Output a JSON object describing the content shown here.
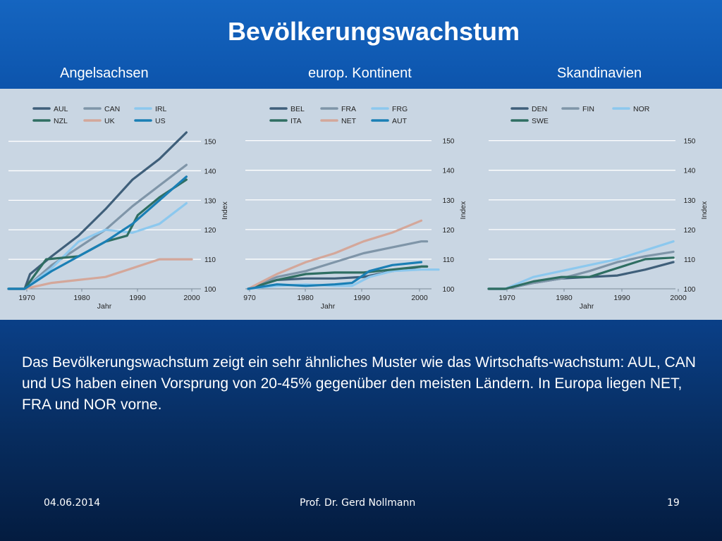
{
  "slide": {
    "title": "Bevölkerungswachstum",
    "subtitles": [
      "Angelsachsen",
      "europ. Kontinent",
      "Skandinavien"
    ],
    "body": "Das Bevölkerungswachstum zeigt ein sehr ähnliches Muster wie das Wirtschafts-wachstum: AUL, CAN und US haben einen Vorsprung von 20-45% gegenüber den meisten Ländern. In Europa liegen NET, FRA und NOR vorne.",
    "footer_date": "04.06.2014",
    "footer_author": "Prof. Dr. Gerd Nollmann",
    "footer_page": "19"
  },
  "colors": {
    "dark": "#3f5f7a",
    "mid": "#7f95a8",
    "light": "#8cc8ee",
    "green": "#2f6e62",
    "pink": "#d4a79a",
    "blue": "#1a7fb5"
  },
  "chart_data": [
    {
      "type": "line",
      "xlabel": "Jahr",
      "ylabel": "Index",
      "xlim": [
        1967,
        2001
      ],
      "ylim": [
        100,
        153
      ],
      "xticks": [
        "1970",
        "1980",
        "1990",
        "2000"
      ],
      "yticks": [
        100,
        110,
        120,
        130,
        140,
        150
      ],
      "grid": true,
      "legend": "top",
      "series": [
        {
          "name": "AUL",
          "color": "dark",
          "x": [
            1967,
            1970,
            1971,
            1975,
            1980,
            1985,
            1990,
            1995,
            2000
          ],
          "y": [
            100,
            100,
            105,
            111,
            118,
            127,
            137,
            144,
            153
          ]
        },
        {
          "name": "CAN",
          "color": "mid",
          "x": [
            1967,
            1970,
            1975,
            1980,
            1985,
            1990,
            1995,
            2000
          ],
          "y": [
            100,
            100,
            108,
            114,
            120,
            128,
            135,
            142
          ]
        },
        {
          "name": "IRL",
          "color": "light",
          "x": [
            1967,
            1970,
            1975,
            1980,
            1985,
            1990,
            1995,
            2000
          ],
          "y": [
            100,
            100,
            107,
            116,
            120,
            119,
            122,
            129
          ]
        },
        {
          "name": "NZL",
          "color": "green",
          "x": [
            1967,
            1970,
            1974,
            1980,
            1985,
            1989,
            1991,
            1995,
            2000
          ],
          "y": [
            100,
            100,
            110,
            111,
            116,
            118,
            125,
            131,
            137
          ]
        },
        {
          "name": "UK",
          "color": "pink",
          "x": [
            1967,
            1970,
            1975,
            1980,
            1985,
            1990,
            1995,
            2001
          ],
          "y": [
            100,
            100,
            102,
            103,
            104,
            107,
            110,
            110
          ]
        },
        {
          "name": "US",
          "color": "blue",
          "x": [
            1967,
            1970,
            1975,
            1980,
            1985,
            1990,
            1995,
            2000
          ],
          "y": [
            100,
            100,
            106,
            111,
            116,
            122,
            130,
            138
          ]
        }
      ]
    },
    {
      "type": "line",
      "xlabel": "Jahr",
      "ylabel": "Index",
      "xlim": [
        1970,
        2003
      ],
      "ylim": [
        100,
        153
      ],
      "xticks": [
        "970",
        "1980",
        "1990",
        "2000"
      ],
      "yticks": [
        100,
        110,
        120,
        130,
        140,
        150
      ],
      "grid": true,
      "legend": "top",
      "series": [
        {
          "name": "BEL",
          "color": "dark",
          "x": [
            1970,
            1975,
            1980,
            1985,
            1990,
            1995,
            2000,
            2001
          ],
          "y": [
            100,
            103,
            103.5,
            103.5,
            104,
            106,
            107.5,
            107.5
          ]
        },
        {
          "name": "FRA",
          "color": "mid",
          "x": [
            1970,
            1975,
            1980,
            1985,
            1990,
            1995,
            2000,
            2001
          ],
          "y": [
            100,
            104,
            106,
            109,
            112,
            114,
            116,
            116
          ]
        },
        {
          "name": "FRG",
          "color": "light",
          "x": [
            1970,
            1975,
            1980,
            1985,
            1988,
            1991,
            1995,
            2000,
            2003
          ],
          "y": [
            100,
            101,
            101.5,
            101,
            101,
            104,
            106,
            106.5,
            106.5
          ]
        },
        {
          "name": "ITA",
          "color": "green",
          "x": [
            1970,
            1975,
            1980,
            1985,
            1990,
            1995,
            2000,
            2001
          ],
          "y": [
            100,
            103,
            105,
            105.5,
            105.5,
            106.5,
            107.5,
            107.5
          ]
        },
        {
          "name": "NET",
          "color": "pink",
          "x": [
            1970,
            1975,
            1980,
            1985,
            1990,
            1995,
            2000
          ],
          "y": [
            100,
            105,
            109,
            112,
            116,
            119,
            123
          ]
        },
        {
          "name": "AUT",
          "color": "blue",
          "x": [
            1970,
            1975,
            1980,
            1985,
            1988,
            1991,
            1995,
            2000
          ],
          "y": [
            100,
            101.5,
            101,
            101.5,
            102,
            106,
            108,
            109
          ]
        }
      ]
    },
    {
      "type": "line",
      "xlabel": "Jahr",
      "ylabel": "Index",
      "xlim": [
        1967,
        2001
      ],
      "ylim": [
        100,
        153
      ],
      "xticks": [
        "1970",
        "1980",
        "1990",
        "2000"
      ],
      "yticks": [
        100,
        110,
        120,
        130,
        140,
        150
      ],
      "grid": true,
      "legend": "top",
      "series": [
        {
          "name": "DEN",
          "color": "dark",
          "x": [
            1967,
            1970,
            1975,
            1980,
            1985,
            1990,
            1995,
            2000
          ],
          "y": [
            100,
            100,
            102,
            103.5,
            104,
            104.5,
            106.5,
            109
          ]
        },
        {
          "name": "FIN",
          "color": "mid",
          "x": [
            1967,
            1970,
            1975,
            1980,
            1985,
            1990,
            1995,
            2000
          ],
          "y": [
            100,
            100,
            102,
            103.5,
            106,
            109,
            111,
            112.5
          ]
        },
        {
          "name": "NOR",
          "color": "light",
          "x": [
            1967,
            1970,
            1975,
            1980,
            1985,
            1990,
            1995,
            2000
          ],
          "y": [
            100,
            100,
            104,
            106,
            108,
            110,
            113,
            116
          ]
        },
        {
          "name": "SWE",
          "color": "green",
          "x": [
            1967,
            1970,
            1975,
            1980,
            1985,
            1990,
            1995,
            2000
          ],
          "y": [
            100,
            100,
            102.5,
            104,
            104,
            107,
            110,
            110.5
          ]
        }
      ]
    }
  ]
}
